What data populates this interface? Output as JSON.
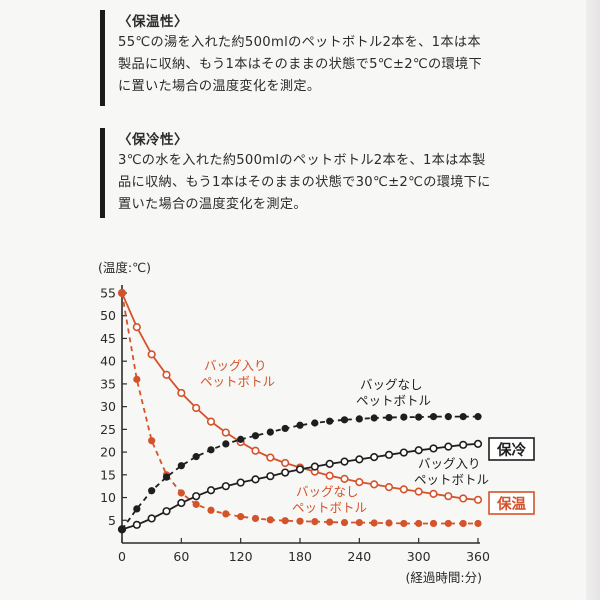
{
  "sections": [
    {
      "heading": "〈保温性〉",
      "lines": [
        "55℃の湯を入れた約500mlのペットボトル2本を、1本は本",
        "製品に収納、もう1本はそのままの状態で5℃±2℃の環境下",
        "に置いた場合の温度変化を測定。"
      ]
    },
    {
      "heading": "〈保冷性〉",
      "lines": [
        "3℃の水を入れた約500mlのペットボトル2本を、1本は本製",
        "品に収納、もう1本はそのままの状態で30℃±2℃の環境下に",
        "置いた場合の温度変化を測定。"
      ]
    }
  ],
  "colors": {
    "warm": "#d4532b",
    "cold": "#1e1e1e"
  },
  "chart_data": {
    "type": "line",
    "ylabel": "(温度:℃)",
    "xlabel": "(経過時間:分)",
    "xlim": [
      0,
      360
    ],
    "ylim": [
      0,
      55
    ],
    "xticks": [
      "0",
      "60",
      "120",
      "180",
      "240",
      "300",
      "360"
    ],
    "yticks": [
      "5",
      "10",
      "15",
      "20",
      "25",
      "30",
      "35",
      "40",
      "45",
      "50",
      "55"
    ],
    "x": [
      0,
      15,
      30,
      45,
      60,
      75,
      90,
      105,
      120,
      135,
      150,
      165,
      180,
      195,
      210,
      225,
      240,
      255,
      270,
      285,
      300,
      315,
      330,
      345,
      360
    ],
    "series": [
      {
        "group": "保温",
        "label": [
          "バッグ入り",
          "ペットボトル"
        ],
        "color": "#d4532b",
        "dash": false,
        "marker": "open",
        "values": [
          55,
          47.5,
          41.5,
          37,
          33,
          29.7,
          26.7,
          24.3,
          22.2,
          20.3,
          18.8,
          17.6,
          16.6,
          15.7,
          14.8,
          14.1,
          13.4,
          12.9,
          12.3,
          11.8,
          11.3,
          10.8,
          10.3,
          9.8,
          9.5
        ]
      },
      {
        "group": "保温",
        "label": [
          "バッグなし",
          "ペットボトル"
        ],
        "color": "#d4532b",
        "dash": true,
        "marker": "filled",
        "values": [
          55,
          36,
          22.5,
          15,
          11,
          8.5,
          7.2,
          6.4,
          5.8,
          5.4,
          5.1,
          4.9,
          4.8,
          4.7,
          4.6,
          4.5,
          4.5,
          4.4,
          4.4,
          4.3,
          4.3,
          4.3,
          4.3,
          4.3,
          4.3
        ]
      },
      {
        "group": "保冷",
        "label": [
          "バッグ入り",
          "ペットボトル"
        ],
        "color": "#1e1e1e",
        "dash": false,
        "marker": "open",
        "values": [
          3,
          4,
          5.4,
          7,
          8.8,
          10.3,
          11.6,
          12.5,
          13.3,
          14,
          14.7,
          15.5,
          16.2,
          16.8,
          17.4,
          17.9,
          18.4,
          18.9,
          19.4,
          19.9,
          20.4,
          20.8,
          21.2,
          21.6,
          21.8
        ]
      },
      {
        "group": "保冷",
        "label": [
          "バッグなし",
          "ペットボトル"
        ],
        "color": "#1e1e1e",
        "dash": true,
        "marker": "filled",
        "values": [
          3,
          7.5,
          11.5,
          14.5,
          17,
          19,
          20.5,
          21.8,
          22.8,
          23.6,
          24.4,
          25.2,
          25.9,
          26.4,
          26.8,
          27.1,
          27.3,
          27.5,
          27.6,
          27.7,
          27.7,
          27.8,
          27.8,
          27.8,
          27.8
        ]
      }
    ],
    "badges": [
      "保冷",
      "保温"
    ]
  }
}
